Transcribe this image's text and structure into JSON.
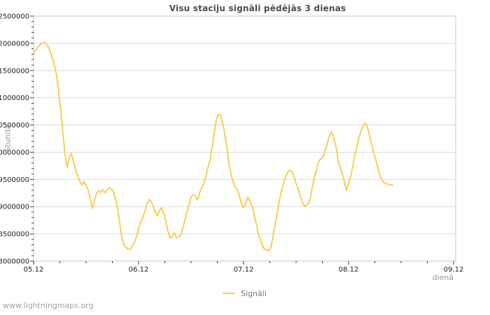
{
  "page": {
    "title": "Visu staciju signāli pēdējās 3 dienas",
    "footer": "www.lightningmaps.org"
  },
  "axes": {
    "y": {
      "label": "Stundā",
      "tick_labels": [
        "12500000",
        "12000000",
        "11500000",
        "11000000",
        "10500000",
        "10000000",
        "9500000",
        "9000000",
        "8500000",
        "8000000"
      ]
    },
    "x": {
      "label": "dienā",
      "tick_labels": [
        "05.12",
        "06.12",
        "07.12",
        "08.12",
        "09.12"
      ]
    }
  },
  "legend": {
    "series_label": "Signāli",
    "swatch_color": "#f8ce58"
  },
  "colors": {
    "line": "#f8ce58",
    "grid": "#d9d9d9",
    "border": "#c6c6c6",
    "tick": "#3a3a3a",
    "tick_text": "#1f1f1f",
    "title_text": "#4d4d4d",
    "axis_name_text": "#999999",
    "legend_text": "#777777",
    "footer_text": "#a3a3a3"
  },
  "chart_data": {
    "type": "line",
    "title": "Visu staciju signāli pēdējās 3 dienas",
    "xlabel": "dienā",
    "ylabel": "Stundā",
    "x_tick_labels": [
      "05.12",
      "06.12",
      "07.12",
      "08.12",
      "09.12"
    ],
    "x_range_days": [
      0,
      4
    ],
    "x_minor_step_days": 0.25,
    "ylim": [
      8000000,
      12500000
    ],
    "y_major_step": 500000,
    "y_minor_step": 100000,
    "grid": "horizontal-major-only",
    "legend_position": "bottom-center",
    "series": [
      {
        "name": "Signāli",
        "color": "#f8ce58",
        "x_start_days": 0,
        "x_step_days": 0.02,
        "values": [
          11820000,
          11880000,
          11930000,
          11970000,
          12000000,
          12020000,
          11990000,
          11930000,
          11850000,
          11720000,
          11580000,
          11400000,
          11100000,
          10750000,
          10350000,
          9950000,
          9720000,
          9900000,
          9980000,
          9820000,
          9680000,
          9570000,
          9460000,
          9400000,
          9460000,
          9380000,
          9300000,
          9120000,
          8970000,
          9120000,
          9240000,
          9300000,
          9260000,
          9320000,
          9250000,
          9300000,
          9350000,
          9330000,
          9280000,
          9150000,
          8950000,
          8700000,
          8450000,
          8300000,
          8250000,
          8220000,
          8210000,
          8280000,
          8350000,
          8440000,
          8600000,
          8720000,
          8800000,
          8920000,
          9050000,
          9130000,
          9100000,
          9000000,
          8900000,
          8830000,
          8920000,
          8980000,
          8880000,
          8720000,
          8550000,
          8420000,
          8450000,
          8520000,
          8430000,
          8450000,
          8470000,
          8600000,
          8740000,
          8900000,
          9030000,
          9180000,
          9220000,
          9200000,
          9120000,
          9250000,
          9350000,
          9420000,
          9550000,
          9720000,
          9850000,
          10100000,
          10350000,
          10600000,
          10700000,
          10680000,
          10550000,
          10350000,
          10100000,
          9800000,
          9600000,
          9450000,
          9360000,
          9320000,
          9200000,
          9050000,
          8980000,
          9050000,
          9170000,
          9100000,
          9020000,
          8850000,
          8700000,
          8500000,
          8400000,
          8280000,
          8220000,
          8200000,
          8190000,
          8250000,
          8450000,
          8650000,
          8880000,
          9100000,
          9280000,
          9420000,
          9550000,
          9640000,
          9670000,
          9650000,
          9550000,
          9430000,
          9320000,
          9200000,
          9080000,
          9000000,
          9040000,
          9060000,
          9200000,
          9400000,
          9580000,
          9720000,
          9850000,
          9880000,
          9920000,
          10050000,
          10180000,
          10320000,
          10370000,
          10250000,
          10100000,
          9850000,
          9720000,
          9600000,
          9450000,
          9300000,
          9420000,
          9560000,
          9750000,
          9950000,
          10120000,
          10280000,
          10400000,
          10500000,
          10540000,
          10460000,
          10300000,
          10140000,
          9980000,
          9860000,
          9700000,
          9560000,
          9480000,
          9440000,
          9420000,
          9410000,
          9400000,
          9400000
        ]
      }
    ]
  }
}
